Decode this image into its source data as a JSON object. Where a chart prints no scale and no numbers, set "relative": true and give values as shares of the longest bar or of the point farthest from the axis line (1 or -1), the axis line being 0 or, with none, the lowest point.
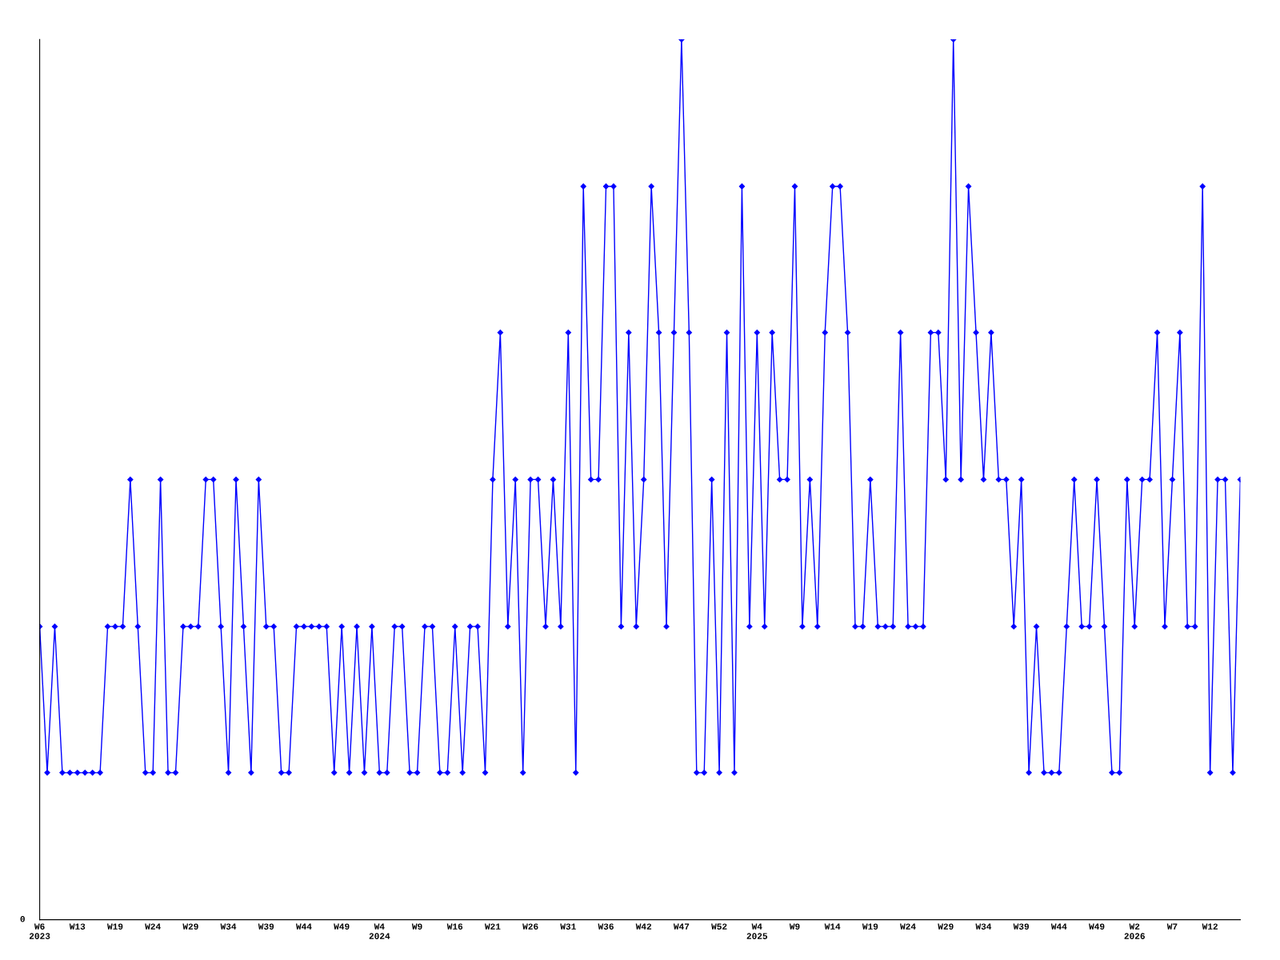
{
  "chart_data": {
    "type": "line",
    "relative": true,
    "marker": "diamond",
    "line_style": "solid",
    "grid": false,
    "legend": false,
    "annotations": [
      "0"
    ],
    "categories": [
      "W6\n2023",
      null,
      null,
      null,
      null,
      "W13",
      null,
      null,
      null,
      null,
      "W19",
      null,
      null,
      null,
      null,
      "W24",
      null,
      null,
      null,
      null,
      "W29",
      null,
      null,
      null,
      null,
      "W34",
      null,
      null,
      null,
      null,
      "W39",
      null,
      null,
      null,
      null,
      "W44",
      null,
      null,
      null,
      null,
      "W49",
      null,
      null,
      null,
      null,
      "W4\n2024",
      null,
      null,
      null,
      null,
      "W9",
      null,
      null,
      null,
      null,
      "W16",
      null,
      null,
      null,
      null,
      "W21",
      null,
      null,
      null,
      null,
      "W26",
      null,
      null,
      null,
      null,
      "W31",
      null,
      null,
      null,
      null,
      "W36",
      null,
      null,
      null,
      null,
      "W42",
      null,
      null,
      null,
      null,
      "W47",
      null,
      null,
      null,
      null,
      "W52",
      null,
      null,
      null,
      null,
      "W4\n2025",
      null,
      null,
      null,
      null,
      "W9",
      null,
      null,
      null,
      null,
      "W14",
      null,
      null,
      null,
      null,
      "W19",
      null,
      null,
      null,
      null,
      "W24",
      null,
      null,
      null,
      null,
      "W29",
      null,
      null,
      null,
      null,
      "W34",
      null,
      null,
      null,
      null,
      "W39",
      null,
      null,
      null,
      null,
      "W44",
      null,
      null,
      null,
      null,
      "W49",
      null,
      null,
      null,
      null,
      "W2\n2026",
      null,
      null,
      null,
      null,
      "W7",
      null,
      null,
      null,
      null,
      "W12",
      null,
      null,
      null,
      null
    ],
    "series": [
      {
        "color": "#0000ff",
        "values": [
          0.333,
          0.167,
          0.333,
          0.167,
          0.167,
          0.167,
          0.167,
          0.167,
          0.167,
          0.333,
          0.333,
          0.333,
          0.5,
          0.333,
          0.167,
          0.167,
          0.5,
          0.167,
          0.167,
          0.333,
          0.333,
          0.333,
          0.5,
          0.5,
          0.333,
          0.167,
          0.5,
          0.333,
          0.167,
          0.5,
          0.333,
          0.333,
          0.167,
          0.167,
          0.333,
          0.333,
          0.333,
          0.333,
          0.333,
          0.167,
          0.333,
          0.167,
          0.333,
          0.167,
          0.333,
          0.167,
          0.167,
          0.333,
          0.333,
          0.167,
          0.167,
          0.333,
          0.333,
          0.167,
          0.167,
          0.333,
          0.167,
          0.333,
          0.333,
          0.167,
          0.5,
          0.667,
          0.333,
          0.5,
          0.167,
          0.5,
          0.5,
          0.333,
          0.5,
          0.333,
          0.667,
          0.167,
          0.833,
          0.5,
          0.5,
          0.833,
          0.833,
          0.333,
          0.667,
          0.333,
          0.5,
          0.833,
          0.667,
          0.333,
          0.667,
          1,
          0.667,
          0.167,
          0.167,
          0.5,
          0.167,
          0.667,
          0.167,
          0.833,
          0.333,
          0.667,
          0.333,
          0.667,
          0.5,
          0.5,
          0.833,
          0.333,
          0.5,
          0.333,
          0.667,
          0.833,
          0.833,
          0.667,
          0.333,
          0.333,
          0.5,
          0.333,
          0.333,
          0.333,
          0.667,
          0.333,
          0.333,
          0.333,
          0.667,
          0.667,
          0.5,
          1,
          0.5,
          0.833,
          0.667,
          0.5,
          0.667,
          0.5,
          0.5,
          0.333,
          0.5,
          0.167,
          0.333,
          0.167,
          0.167,
          0.167,
          0.333,
          0.5,
          0.333,
          0.333,
          0.5,
          0.333,
          0.167,
          0.167,
          0.5,
          0.333,
          0.5,
          0.5,
          0.667,
          0.333,
          0.5,
          0.667,
          0.333,
          0.333,
          0.833,
          0.167,
          0.5,
          0.5,
          0.167,
          0.5
        ]
      }
    ]
  }
}
